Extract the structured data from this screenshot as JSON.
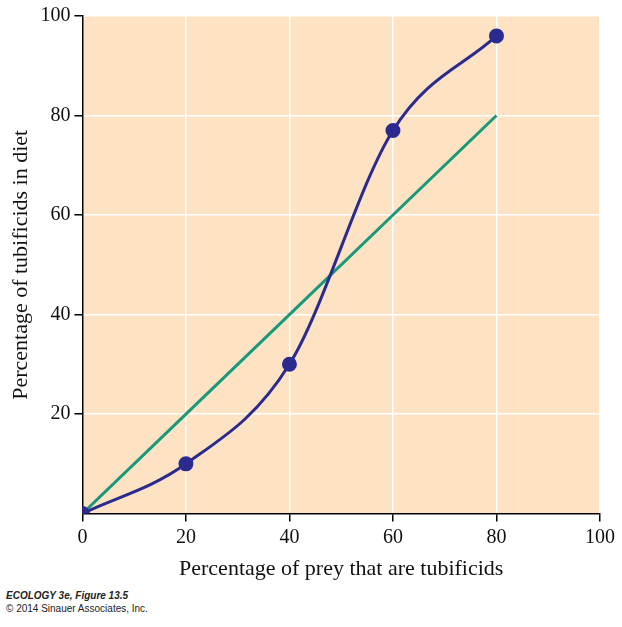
{
  "chart_data": {
    "type": "line",
    "x_label": "Percentage of prey that are tubificids",
    "y_label": "Percentage of tubificids in diet",
    "x": [
      0,
      20,
      40,
      60,
      80
    ],
    "series": [
      {
        "color": "#2b2b8f",
        "marker": "circle",
        "values": [
          0,
          10,
          30,
          77,
          96
        ]
      },
      {
        "color": "#17997a",
        "marker": "none",
        "values": [
          0,
          20,
          40,
          60,
          80
        ]
      }
    ],
    "xlim": [
      0,
      100
    ],
    "xticks": [
      0,
      20,
      40,
      60,
      80,
      100
    ],
    "ylim": [
      0,
      100
    ],
    "yticks": [
      20,
      40,
      60,
      80,
      100
    ],
    "grid": true,
    "footnote": [
      "ECOLOGY 3e, Figure 13.5",
      "© 2014 Sinauer Associates, Inc."
    ]
  }
}
